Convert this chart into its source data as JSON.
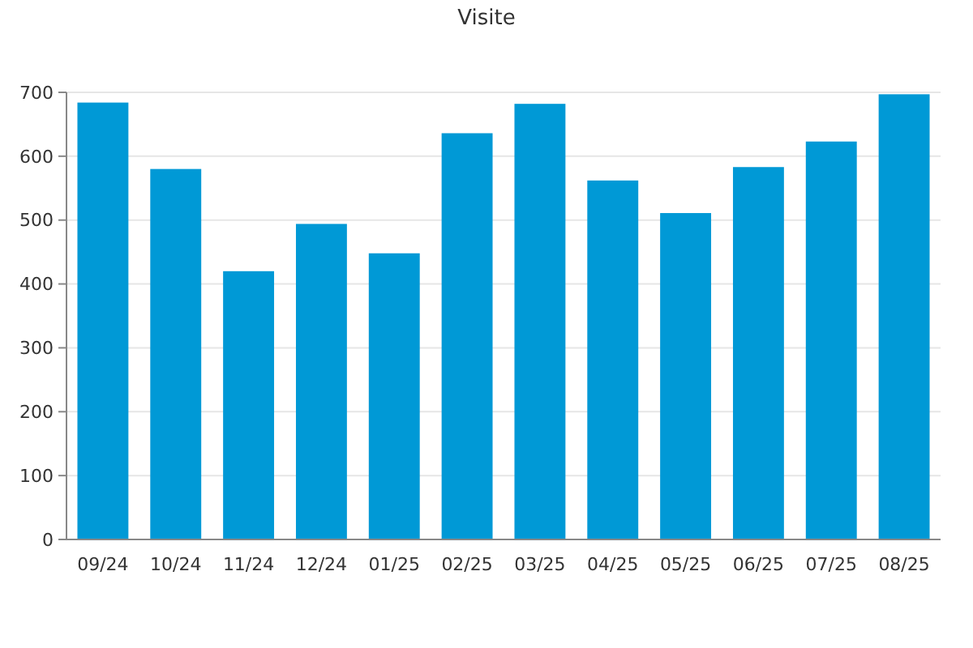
{
  "chart_data": {
    "type": "bar",
    "title": "Visite",
    "categories": [
      "09/24",
      "10/24",
      "11/24",
      "12/24",
      "01/25",
      "02/25",
      "03/25",
      "04/25",
      "05/25",
      "06/25",
      "07/25",
      "08/25"
    ],
    "values": [
      684,
      580,
      420,
      494,
      448,
      636,
      682,
      562,
      511,
      583,
      623,
      697
    ],
    "color": "#0099d6",
    "ylim": [
      0,
      700
    ],
    "yticks": [
      0,
      100,
      200,
      300,
      400,
      500,
      600,
      700
    ],
    "grid": "y"
  }
}
